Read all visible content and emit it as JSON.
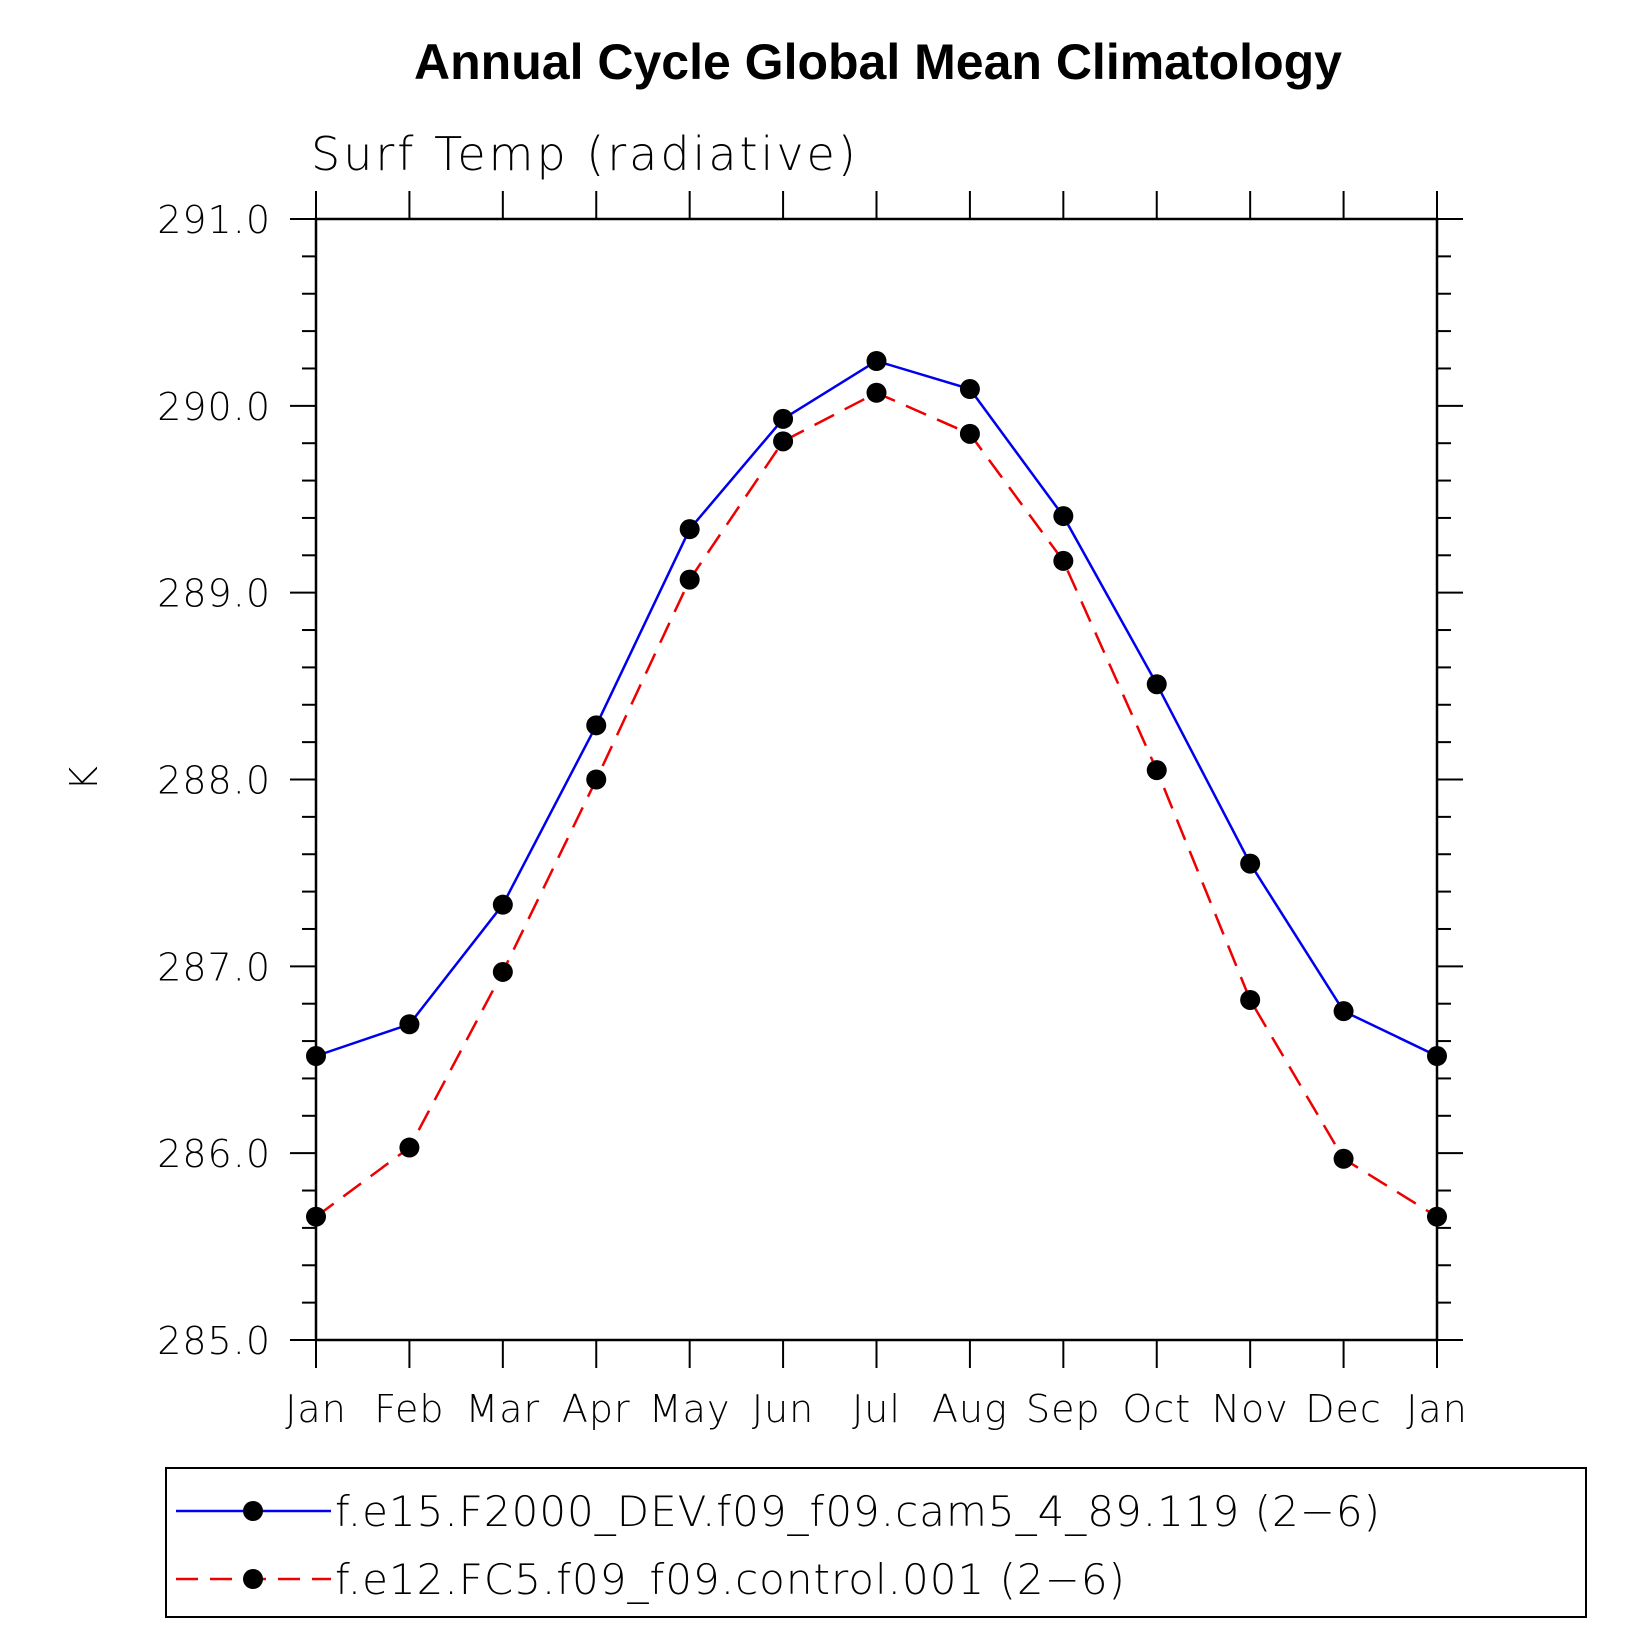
{
  "chart_data": {
    "type": "line",
    "title": "Annual Cycle Global Mean Climatology",
    "subtitle": "Surf Temp (radiative)",
    "ylabel": "K",
    "xlabel": "",
    "ylim": [
      285.0,
      291.0
    ],
    "yticks": [
      "285.0",
      "286.0",
      "287.0",
      "288.0",
      "289.0",
      "290.0",
      "291.0"
    ],
    "categories": [
      "Jan",
      "Feb",
      "Mar",
      "Apr",
      "May",
      "Jun",
      "Jul",
      "Aug",
      "Sep",
      "Oct",
      "Nov",
      "Dec",
      "Jan"
    ],
    "series": [
      {
        "name": "f.e15.F2000_DEV.f09_f09.cam5_4_89.119 (2−6)",
        "color": "#0000ee",
        "dash": "solid",
        "values": [
          286.52,
          286.69,
          287.33,
          288.29,
          289.34,
          289.93,
          290.24,
          290.09,
          289.41,
          288.51,
          287.55,
          286.76,
          286.52
        ]
      },
      {
        "name": "f.e12.FC5.f09_f09.control.001 (2−6)",
        "color": "#ee0000",
        "dash": "dashed",
        "values": [
          285.66,
          286.03,
          286.97,
          288.0,
          289.07,
          289.81,
          290.07,
          289.85,
          289.17,
          288.05,
          286.82,
          285.97,
          285.66
        ]
      }
    ]
  }
}
